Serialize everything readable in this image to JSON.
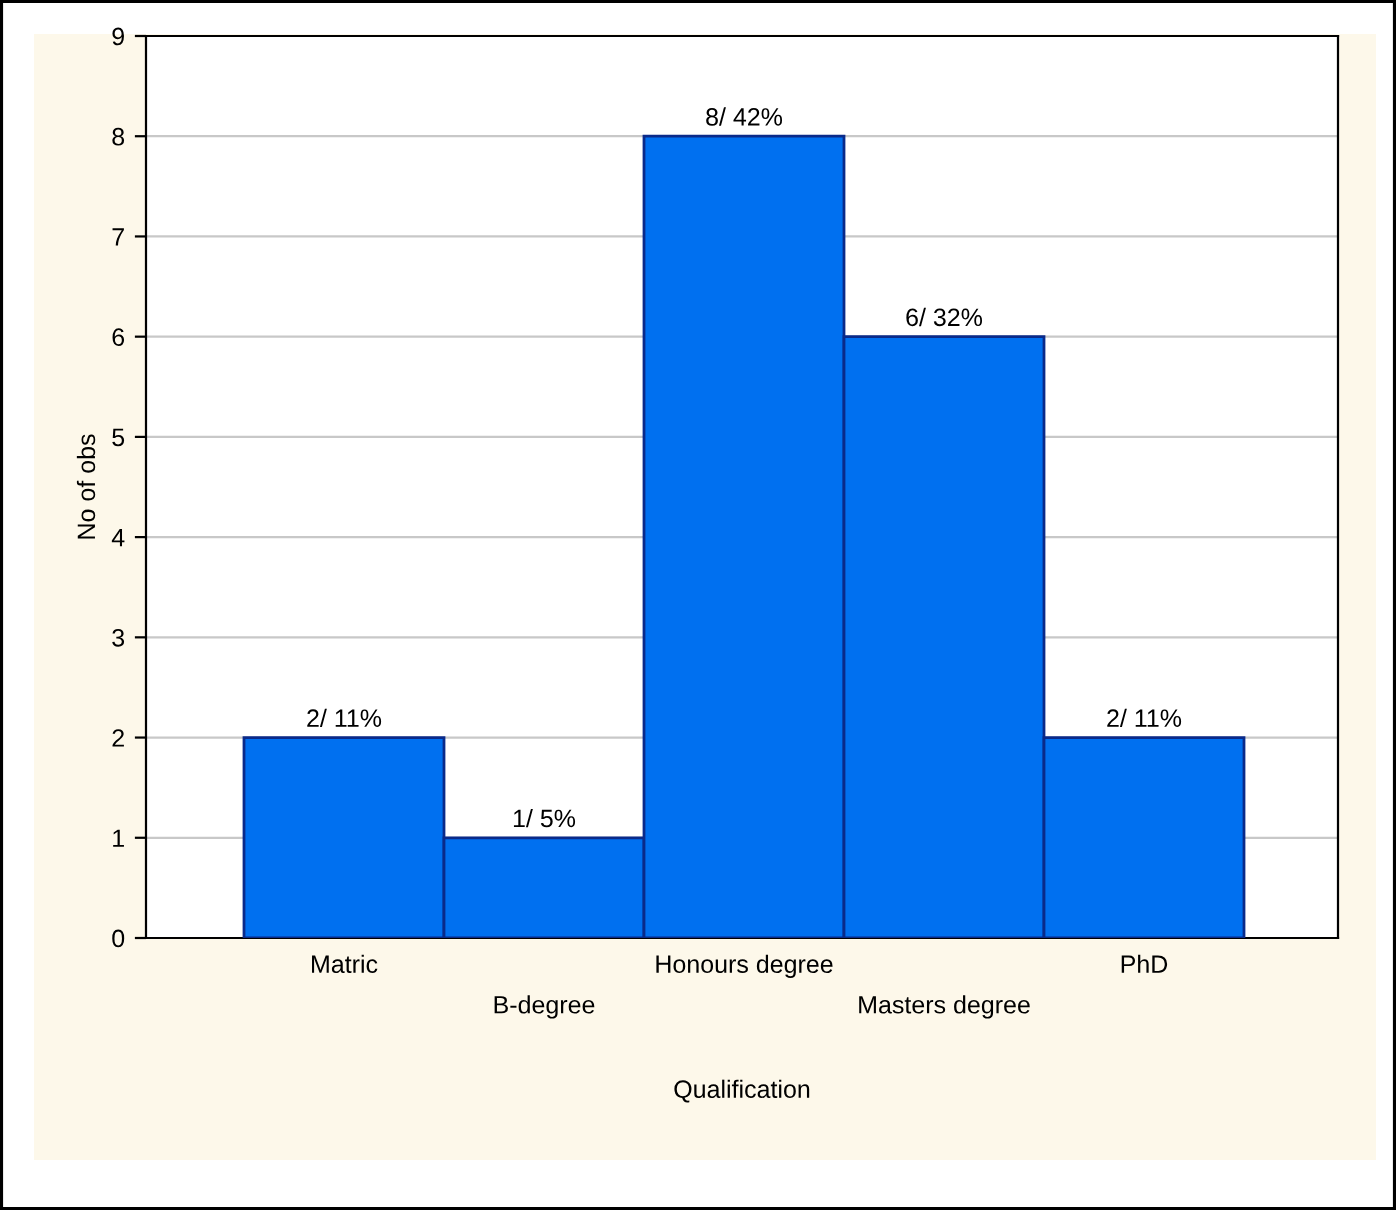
{
  "chart_data": {
    "type": "bar",
    "xlabel": "Qualification",
    "ylabel": "No of obs",
    "categories": [
      "Matric",
      "B-degree",
      "Honours degree",
      "Masters degree",
      "PhD"
    ],
    "values": [
      2,
      1,
      8,
      6,
      2
    ],
    "value_labels": [
      "2/ 11%",
      "1/ 5%",
      "8/ 42%",
      "6/ 32%",
      "2/ 11%"
    ],
    "color": "#0070f0",
    "ylim": [
      0,
      9
    ],
    "yticks": [
      0,
      1,
      2,
      3,
      4,
      5,
      6,
      7,
      8,
      9
    ],
    "grid": "y",
    "legend": false
  }
}
